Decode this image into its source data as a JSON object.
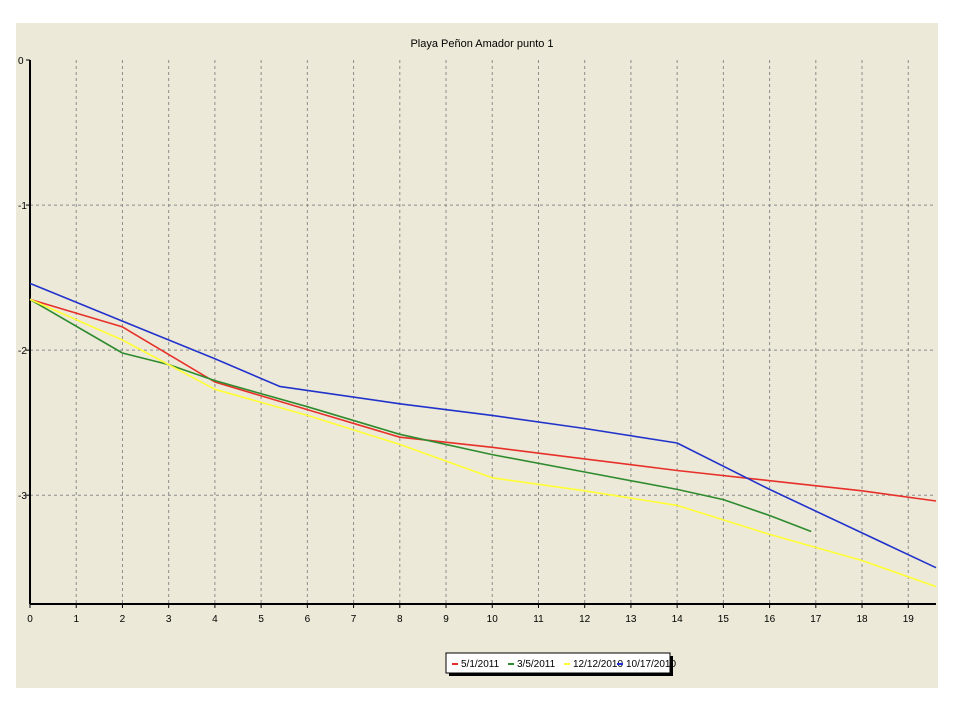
{
  "chart_data": {
    "type": "line",
    "title": "Playa Peñon Amador punto 1",
    "xlabel": "",
    "ylabel": "",
    "xlim": [
      0,
      19.6
    ],
    "ylim": [
      -3.75,
      0
    ],
    "x_ticks": [
      "0",
      "1",
      "2",
      "3",
      "4",
      "5",
      "6",
      "7",
      "8",
      "9",
      "10",
      "11",
      "12",
      "13",
      "14",
      "15",
      "16",
      "17",
      "18",
      "19"
    ],
    "y_ticks": [
      "0",
      "-1",
      "-2",
      "-3"
    ],
    "grid": true,
    "legend_position": "bottom-right",
    "series": [
      {
        "name": "5/1/2011",
        "color": "#E8302A",
        "points": [
          [
            0,
            -1.65
          ],
          [
            2,
            -1.84
          ],
          [
            4,
            -2.22
          ],
          [
            6,
            -2.41
          ],
          [
            8,
            -2.6
          ],
          [
            10,
            -2.67
          ],
          [
            12,
            -2.75
          ],
          [
            14,
            -2.83
          ],
          [
            16,
            -2.9
          ],
          [
            18,
            -2.97
          ],
          [
            19.6,
            -3.04
          ]
        ]
      },
      {
        "name": "3/5/2011",
        "color": "#2E8B2E",
        "points": [
          [
            0,
            -1.65
          ],
          [
            2,
            -2.02
          ],
          [
            3,
            -2.1
          ],
          [
            4,
            -2.21
          ],
          [
            6,
            -2.39
          ],
          [
            8,
            -2.58
          ],
          [
            10,
            -2.72
          ],
          [
            12,
            -2.84
          ],
          [
            14,
            -2.96
          ],
          [
            15,
            -3.03
          ],
          [
            16,
            -3.14
          ],
          [
            16.9,
            -3.25
          ]
        ]
      },
      {
        "name": "12/12/2010",
        "color": "#FFFF33",
        "points": [
          [
            0,
            -1.65
          ],
          [
            2,
            -1.93
          ],
          [
            4,
            -2.27
          ],
          [
            6,
            -2.45
          ],
          [
            8,
            -2.65
          ],
          [
            10,
            -2.88
          ],
          [
            12,
            -2.97
          ],
          [
            14,
            -3.07
          ],
          [
            16,
            -3.27
          ],
          [
            18,
            -3.45
          ],
          [
            19.6,
            -3.63
          ]
        ]
      },
      {
        "name": "10/17/2010",
        "color": "#2233CC",
        "points": [
          [
            0,
            -1.54
          ],
          [
            2,
            -1.8
          ],
          [
            4,
            -2.06
          ],
          [
            5.4,
            -2.25
          ],
          [
            8,
            -2.37
          ],
          [
            10,
            -2.45
          ],
          [
            12,
            -2.54
          ],
          [
            14,
            -2.64
          ],
          [
            16,
            -2.96
          ],
          [
            18,
            -3.26
          ],
          [
            19.6,
            -3.5
          ]
        ]
      }
    ]
  }
}
